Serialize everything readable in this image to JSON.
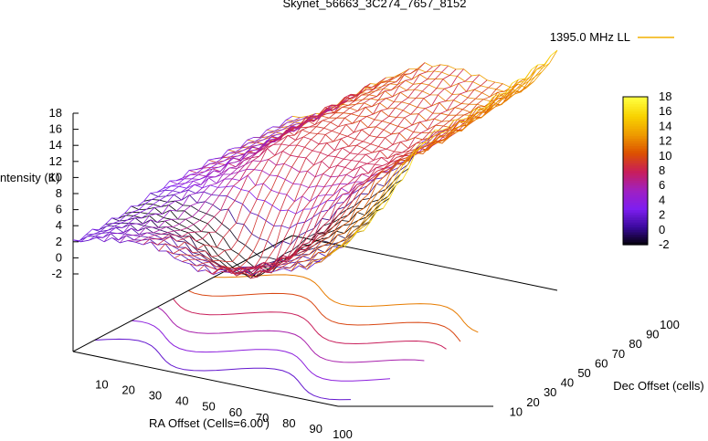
{
  "chart_data": {
    "type": "surface",
    "title": "Skynet_56663_3C274_7657_8152",
    "legend_entry": "1395.0 MHz LL",
    "legend_placement": "top-right",
    "xlabel": "RA Offset (Cells=6.00')",
    "ylabel": "Dec Offset (cells)",
    "zlabel": "Intensity (K)",
    "x_ticks": [
      "10",
      "20",
      "30",
      "40",
      "50",
      "60",
      "70",
      "80",
      "90",
      "100"
    ],
    "y_ticks": [
      "10",
      "20",
      "30",
      "40",
      "50",
      "60",
      "70",
      "80",
      "90",
      "100"
    ],
    "z_ticks": [
      "-2",
      "0",
      "2",
      "4",
      "6",
      "8",
      "10",
      "12",
      "14",
      "16",
      "18"
    ],
    "colorbar_ticks": [
      "-2",
      "0",
      "2",
      "4",
      "6",
      "8",
      "10",
      "12",
      "14",
      "16",
      "18"
    ],
    "xlim": [
      1,
      100
    ],
    "ylim": [
      1,
      100
    ],
    "zlim": [
      -2,
      18
    ],
    "colormap": [
      "#000000",
      "#3a0a9c",
      "#7e1ef0",
      "#a020c0",
      "#c81e5a",
      "#dc5000",
      "#ee9a00",
      "#f8d200",
      "#ffff40"
    ],
    "contour_base_level": -2,
    "surface_profile_RA": {
      "x": [
        1,
        10,
        20,
        30,
        40,
        50,
        60,
        70,
        80,
        90,
        100
      ],
      "z_low_dec": [
        2,
        3,
        3.5,
        4,
        3,
        2,
        2.5,
        3,
        4,
        5,
        8
      ],
      "z_mid_dec": [
        3,
        4,
        6,
        9,
        10,
        9.5,
        9,
        8.5,
        10,
        12,
        16
      ],
      "z_high_dec": [
        3,
        4,
        6,
        9,
        11,
        13,
        13.5,
        13,
        12.5,
        13,
        18
      ]
    },
    "grid": false
  }
}
